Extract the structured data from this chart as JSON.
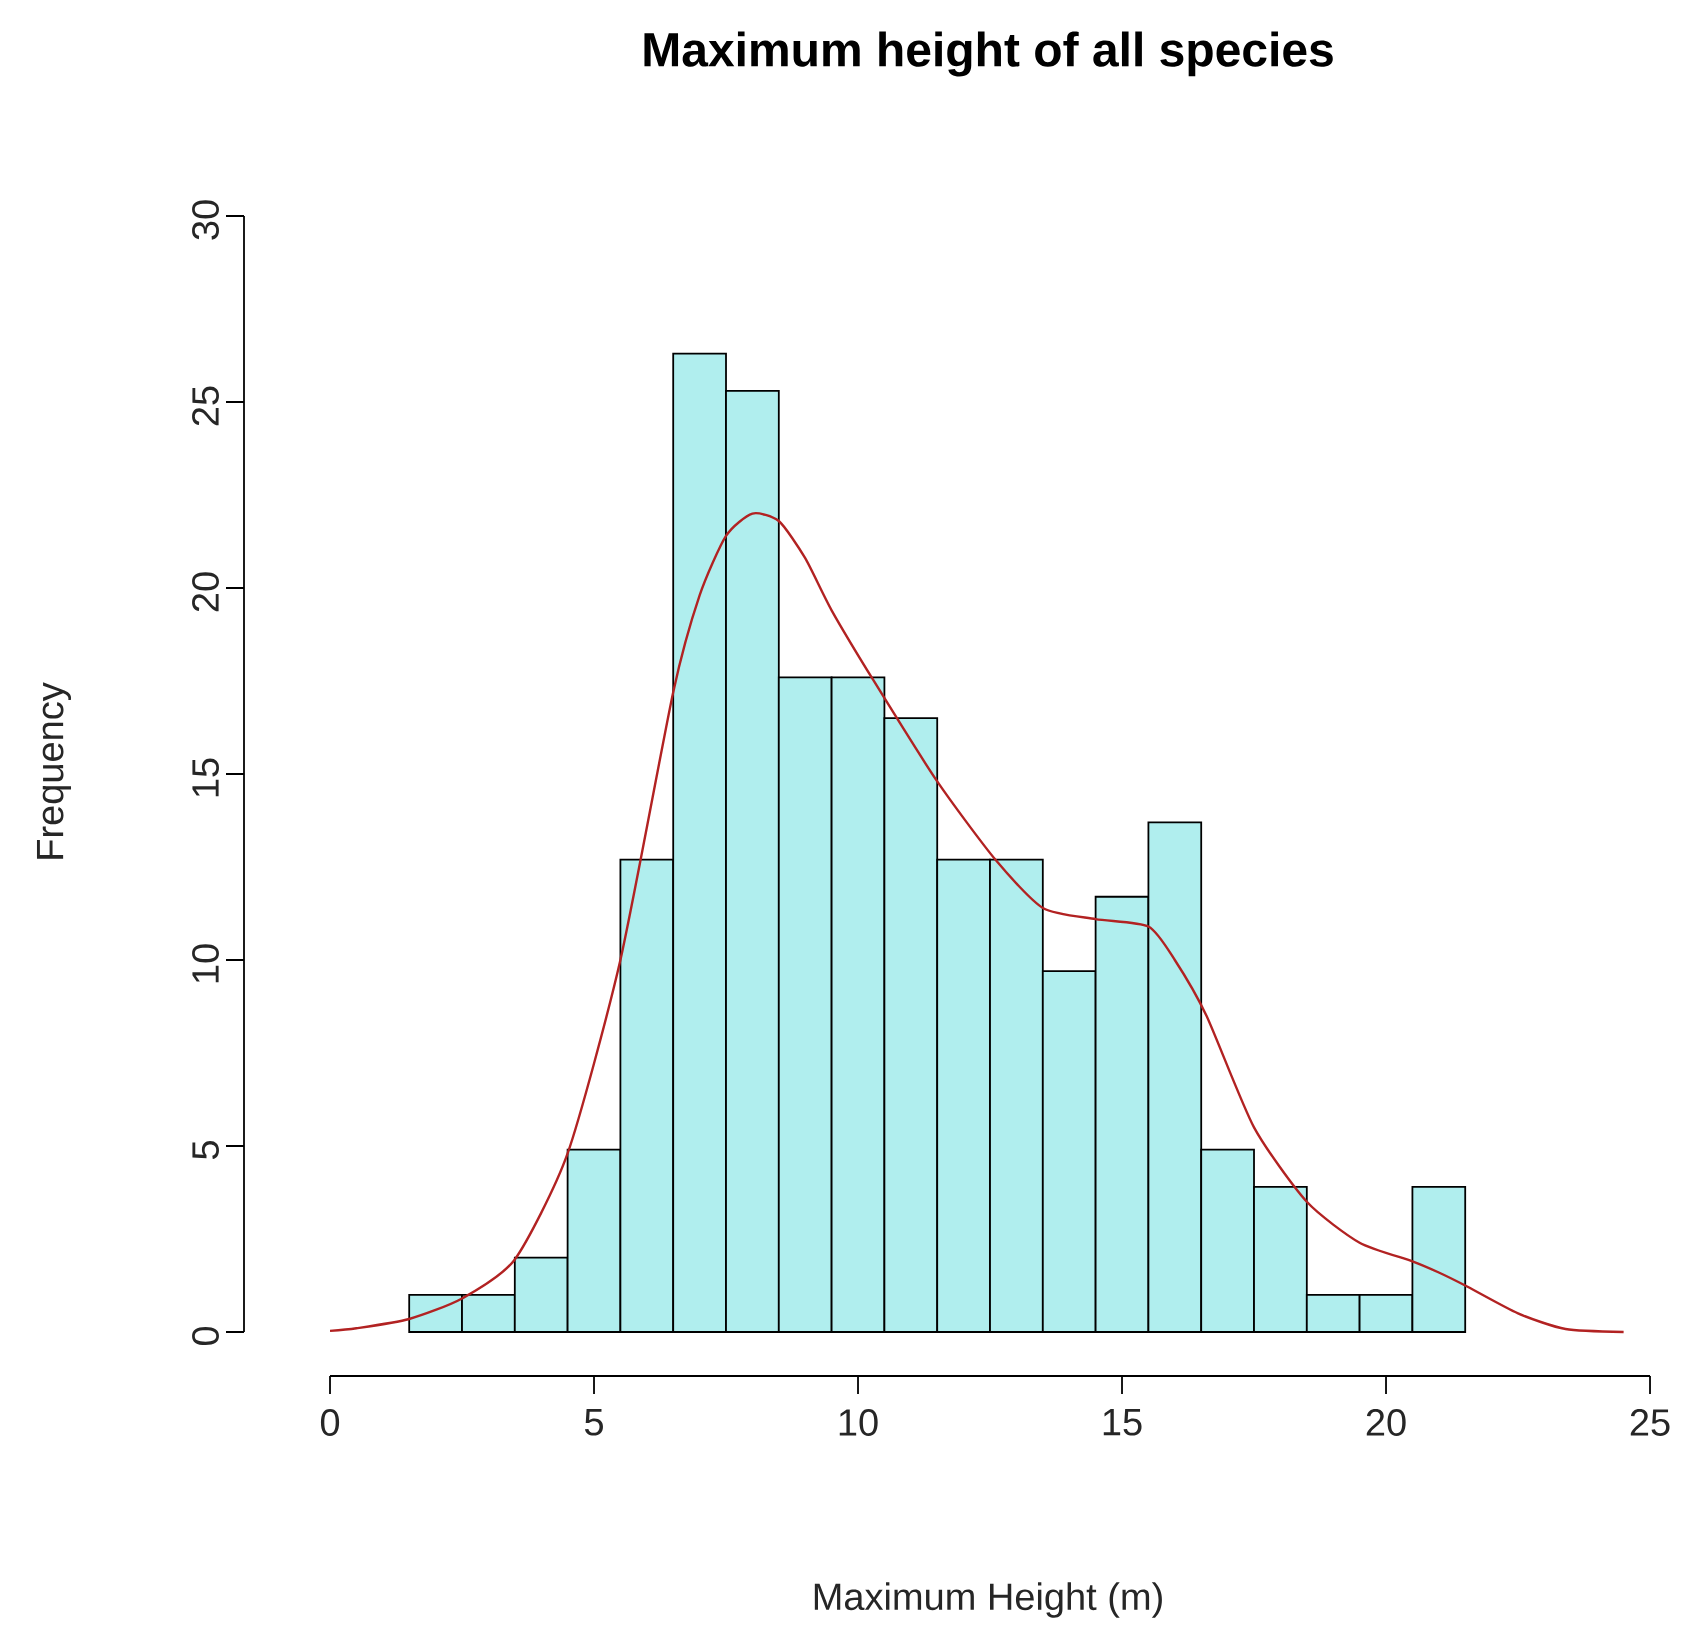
{
  "chart_data": {
    "type": "histogram",
    "title": "Maximum height of all species",
    "xlabel": "Maximum Height (m)",
    "ylabel": "Frequency",
    "bins": [
      1.5,
      2.5,
      3.5,
      4.5,
      5.5,
      6.5,
      7.5,
      8.5,
      9.5,
      10.5,
      11.5,
      12.5,
      13.5,
      14.5,
      15.5,
      16.5,
      17.5,
      18.5,
      19.5,
      20.5,
      21.5
    ],
    "values": [
      1,
      1,
      2,
      4.9,
      12.7,
      26.3,
      25.3,
      17.6,
      17.6,
      16.5,
      12.7,
      12.7,
      9.7,
      11.7,
      13.7,
      4.9,
      3.9,
      1,
      1,
      3.9
    ],
    "color": "#b0eeee",
    "series": [
      {
        "type": "line",
        "color": "#b22222",
        "x": [
          0,
          0.5,
          1.5,
          2.5,
          3.5,
          4.5,
          5.5,
          6.5,
          7,
          7.5,
          8,
          8.5,
          9,
          9.5,
          10.3,
          11.5,
          12.6,
          13.5,
          14.5,
          15.5,
          16,
          16.6,
          17.5,
          18.5,
          19.5,
          20.5,
          21,
          21.5,
          22.5,
          23.4,
          24.5
        ],
        "values": [
          0.03,
          0.1,
          0.35,
          0.9,
          1.95,
          4.8,
          10,
          17.2,
          19.8,
          21.4,
          22,
          21.8,
          20.8,
          19.4,
          17.5,
          14.8,
          12.7,
          11.4,
          11.1,
          10.9,
          10,
          8.5,
          5.5,
          3.5,
          2.4,
          1.9,
          1.6,
          1.25,
          0.5,
          0.08,
          0
        ]
      }
    ],
    "xlim": [
      0,
      25
    ],
    "ylim": [
      0,
      30
    ],
    "xticks": [
      0,
      5,
      10,
      15,
      20,
      25
    ],
    "yticks": [
      0,
      5,
      10,
      15,
      20,
      25,
      30
    ],
    "grid": false
  }
}
